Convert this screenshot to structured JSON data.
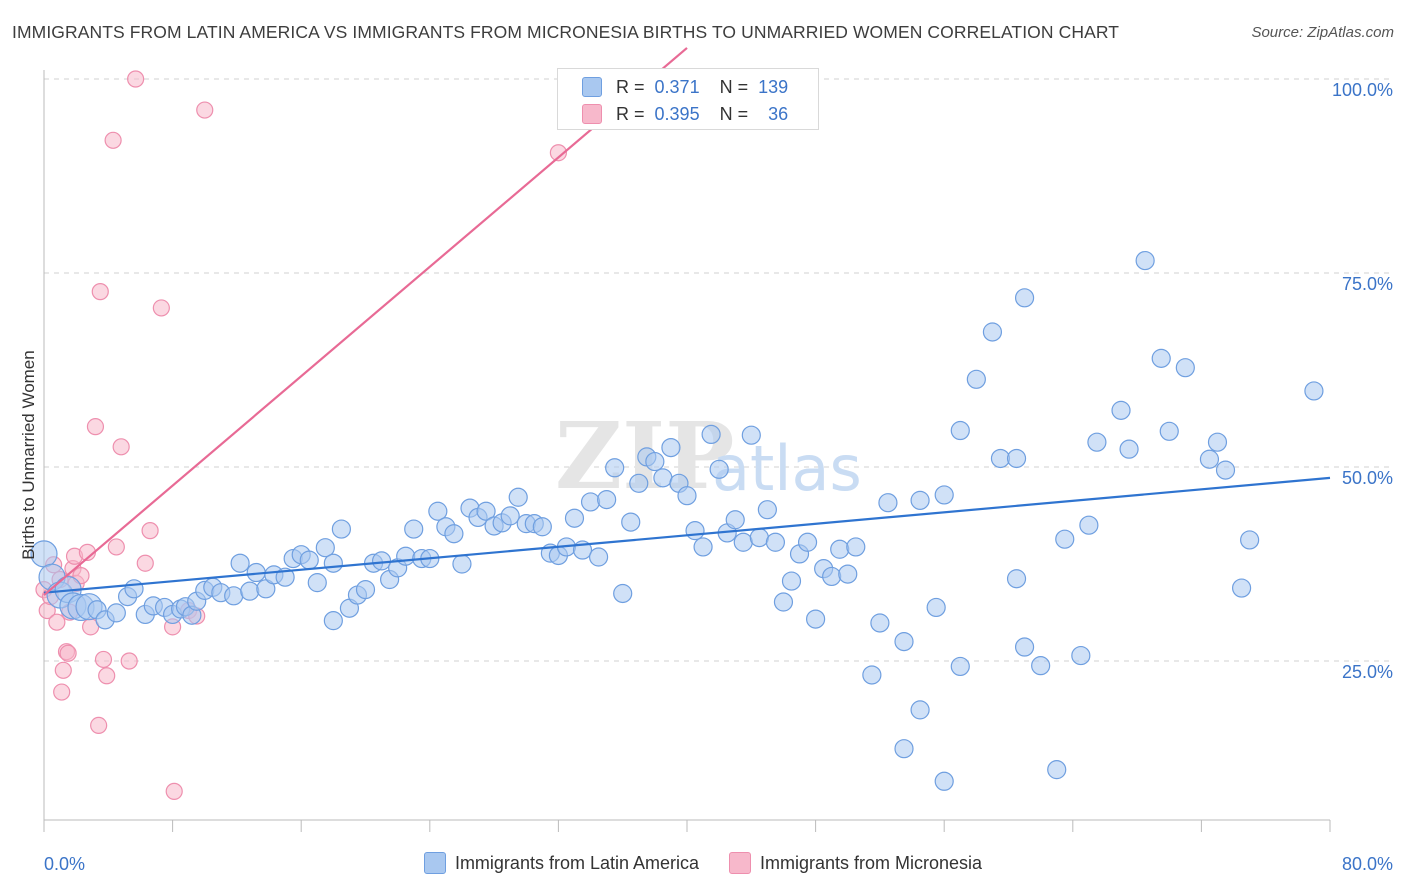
{
  "title": "IMMIGRANTS FROM LATIN AMERICA VS IMMIGRANTS FROM MICRONESIA BIRTHS TO UNMARRIED WOMEN CORRELATION CHART",
  "source": "Source: ZipAtlas.com",
  "watermark": {
    "zip": "ZIP",
    "atlas": "atlas"
  },
  "stats": {
    "rows": [
      {
        "r_label": "R =",
        "r_value": "0.371",
        "n_label": "N =",
        "n_value": "139"
      },
      {
        "r_label": "R =",
        "r_value": "0.395",
        "n_label": "N =",
        "n_value": "36"
      }
    ]
  },
  "colors": {
    "blue_fill": "#a9c8f0",
    "blue_stroke": "#6f9fe0",
    "blue_line": "#2f74d0",
    "pink_fill": "#f7b8cb",
    "pink_stroke": "#ee8fae",
    "pink_line": "#e86a95",
    "axis_label": "#3b74c8",
    "grid": "#d0d0d0"
  },
  "chart_data": {
    "type": "scatter",
    "title": "IMMIGRANTS FROM LATIN AMERICA VS IMMIGRANTS FROM MICRONESIA BIRTHS TO UNMARRIED WOMEN CORRELATION CHART",
    "xlabel": "",
    "ylabel": "Births to Unmarried Women",
    "xlim": [
      0,
      80
    ],
    "ylim": [
      0,
      105
    ],
    "x_tick_labels": [
      "0.0%",
      "80.0%"
    ],
    "y_ticks": [
      25,
      50,
      75,
      100
    ],
    "y_tick_labels": [
      "25.0%",
      "50.0%",
      "75.0%",
      "100.0%"
    ],
    "grid": true,
    "legend_position": "bottom",
    "series": [
      {
        "name": "Immigrants from Latin America",
        "color": "#a9c8f0",
        "trend": {
          "x": [
            0,
            80
          ],
          "y": [
            33.8,
            48.6
          ]
        },
        "points": [
          [
            0.0,
            38.8
          ],
          [
            0.5,
            35.8
          ],
          [
            1.0,
            33.5
          ],
          [
            1.5,
            34.2
          ],
          [
            1.8,
            32.1
          ],
          [
            2.3,
            31.9
          ],
          [
            2.8,
            32.0
          ],
          [
            3.3,
            31.6
          ],
          [
            3.8,
            30.3
          ],
          [
            4.5,
            31.2
          ],
          [
            5.2,
            33.3
          ],
          [
            5.6,
            34.3
          ],
          [
            6.3,
            31.0
          ],
          [
            6.8,
            32.1
          ],
          [
            7.5,
            31.9
          ],
          [
            8.0,
            31.0
          ],
          [
            8.5,
            31.7
          ],
          [
            8.8,
            32.0
          ],
          [
            9.2,
            30.9
          ],
          [
            9.5,
            32.7
          ],
          [
            10.0,
            34.1
          ],
          [
            10.5,
            34.5
          ],
          [
            11.0,
            33.8
          ],
          [
            11.8,
            33.4
          ],
          [
            12.2,
            37.6
          ],
          [
            12.8,
            34.0
          ],
          [
            13.2,
            36.4
          ],
          [
            13.8,
            34.3
          ],
          [
            14.3,
            36.1
          ],
          [
            15.0,
            35.8
          ],
          [
            15.5,
            38.2
          ],
          [
            16.0,
            38.7
          ],
          [
            16.5,
            38.0
          ],
          [
            17.0,
            35.1
          ],
          [
            17.5,
            39.6
          ],
          [
            18.0,
            37.6
          ],
          [
            18.0,
            30.2
          ],
          [
            18.5,
            42.0
          ],
          [
            19.0,
            31.8
          ],
          [
            19.5,
            33.5
          ],
          [
            20.0,
            34.2
          ],
          [
            20.5,
            37.6
          ],
          [
            21.0,
            37.9
          ],
          [
            21.5,
            35.5
          ],
          [
            22.0,
            37.0
          ],
          [
            22.5,
            38.5
          ],
          [
            23.0,
            42.0
          ],
          [
            23.5,
            38.2
          ],
          [
            24.0,
            38.2
          ],
          [
            24.5,
            44.3
          ],
          [
            25.0,
            42.3
          ],
          [
            25.5,
            41.4
          ],
          [
            26.0,
            37.5
          ],
          [
            26.5,
            44.7
          ],
          [
            27.0,
            43.5
          ],
          [
            27.5,
            44.3
          ],
          [
            28.0,
            42.4
          ],
          [
            28.5,
            42.8
          ],
          [
            29.0,
            43.7
          ],
          [
            29.5,
            46.1
          ],
          [
            30.0,
            42.7
          ],
          [
            30.5,
            42.7
          ],
          [
            31.0,
            42.3
          ],
          [
            31.5,
            38.9
          ],
          [
            32.0,
            38.6
          ],
          [
            32.5,
            39.7
          ],
          [
            33.0,
            43.4
          ],
          [
            33.5,
            39.3
          ],
          [
            34.0,
            45.5
          ],
          [
            34.5,
            38.4
          ],
          [
            35.0,
            45.8
          ],
          [
            35.5,
            49.9
          ],
          [
            36.0,
            33.7
          ],
          [
            36.5,
            42.9
          ],
          [
            37.0,
            47.9
          ],
          [
            37.5,
            51.3
          ],
          [
            38.0,
            50.7
          ],
          [
            38.5,
            48.6
          ],
          [
            39.0,
            52.5
          ],
          [
            39.5,
            47.9
          ],
          [
            40.0,
            46.3
          ],
          [
            40.5,
            41.8
          ],
          [
            41.0,
            39.7
          ],
          [
            41.5,
            54.2
          ],
          [
            42.0,
            49.7
          ],
          [
            42.5,
            41.5
          ],
          [
            43.0,
            43.2
          ],
          [
            43.5,
            40.3
          ],
          [
            44.0,
            54.1
          ],
          [
            44.5,
            40.9
          ],
          [
            45.0,
            44.5
          ],
          [
            45.5,
            40.3
          ],
          [
            46.0,
            32.6
          ],
          [
            46.5,
            35.3
          ],
          [
            47.0,
            38.8
          ],
          [
            47.5,
            40.3
          ],
          [
            48.0,
            30.4
          ],
          [
            48.5,
            36.9
          ],
          [
            49.0,
            35.9
          ],
          [
            49.5,
            39.4
          ],
          [
            50.0,
            36.2
          ],
          [
            50.5,
            39.7
          ],
          [
            51.5,
            23.2
          ],
          [
            52.0,
            29.9
          ],
          [
            52.5,
            45.4
          ],
          [
            53.5,
            27.5
          ],
          [
            53.5,
            13.7
          ],
          [
            54.5,
            45.7
          ],
          [
            54.5,
            18.7
          ],
          [
            55.5,
            31.9
          ],
          [
            56.0,
            46.4
          ],
          [
            56.0,
            9.5
          ],
          [
            57.0,
            54.7
          ],
          [
            57.0,
            24.3
          ],
          [
            58.0,
            61.3
          ],
          [
            59.0,
            67.4
          ],
          [
            59.5,
            51.1
          ],
          [
            60.5,
            51.1
          ],
          [
            60.5,
            35.6
          ],
          [
            61.0,
            71.8
          ],
          [
            61.0,
            26.8
          ],
          [
            62.0,
            24.4
          ],
          [
            63.5,
            40.7
          ],
          [
            64.5,
            25.7
          ],
          [
            65.0,
            42.5
          ],
          [
            65.5,
            53.2
          ],
          [
            67.0,
            57.3
          ],
          [
            67.5,
            52.3
          ],
          [
            68.5,
            76.6
          ],
          [
            69.5,
            64.0
          ],
          [
            70.0,
            54.6
          ],
          [
            71.0,
            62.8
          ],
          [
            72.5,
            51.0
          ],
          [
            73.0,
            53.2
          ],
          [
            73.5,
            49.6
          ],
          [
            74.5,
            34.4
          ],
          [
            75.0,
            40.6
          ],
          [
            79.0,
            59.8
          ],
          [
            63.0,
            11.0
          ]
        ]
      },
      {
        "name": "Immigrants from Micronesia",
        "color": "#f7b8cb",
        "trend": {
          "x": [
            0,
            40
          ],
          "y": [
            33.5,
            104.0
          ]
        },
        "points": [
          [
            0.0,
            34.2
          ],
          [
            0.2,
            31.5
          ],
          [
            0.4,
            33.3
          ],
          [
            0.6,
            37.4
          ],
          [
            0.8,
            30.0
          ],
          [
            1.0,
            35.5
          ],
          [
            1.1,
            21.0
          ],
          [
            1.2,
            23.8
          ],
          [
            1.4,
            26.2
          ],
          [
            1.5,
            26.0
          ],
          [
            1.6,
            31.3
          ],
          [
            1.8,
            36.9
          ],
          [
            1.9,
            38.5
          ],
          [
            2.0,
            35.0
          ],
          [
            2.3,
            36.0
          ],
          [
            2.7,
            39.0
          ],
          [
            2.9,
            29.4
          ],
          [
            3.2,
            55.2
          ],
          [
            3.4,
            16.7
          ],
          [
            3.5,
            72.6
          ],
          [
            3.7,
            25.2
          ],
          [
            3.9,
            23.1
          ],
          [
            4.3,
            92.1
          ],
          [
            4.5,
            39.7
          ],
          [
            4.8,
            52.6
          ],
          [
            5.3,
            25.0
          ],
          [
            5.7,
            100.0
          ],
          [
            6.3,
            37.6
          ],
          [
            6.6,
            41.8
          ],
          [
            7.3,
            70.5
          ],
          [
            8.0,
            29.4
          ],
          [
            8.1,
            8.2
          ],
          [
            9.0,
            31.5
          ],
          [
            9.5,
            30.8
          ],
          [
            10.0,
            96.0
          ],
          [
            32.0,
            90.5
          ]
        ]
      }
    ]
  }
}
